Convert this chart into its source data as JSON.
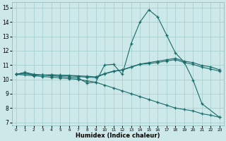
{
  "xlabel": "Humidex (Indice chaleur)",
  "background_color": "#cce8e8",
  "grid_color": "#a8d0d0",
  "line_color": "#1a6b6b",
  "xlim": [
    -0.5,
    23.5
  ],
  "ylim": [
    6.8,
    15.4
  ],
  "yticks": [
    7,
    8,
    9,
    10,
    11,
    12,
    13,
    14,
    15
  ],
  "xticks": [
    0,
    1,
    2,
    3,
    4,
    5,
    6,
    7,
    8,
    9,
    10,
    11,
    12,
    13,
    14,
    15,
    16,
    17,
    18,
    19,
    20,
    21,
    22,
    23
  ],
  "series": [
    {
      "x": [
        0,
        1,
        2,
        3,
        4,
        5,
        6,
        7,
        8,
        9,
        10,
        11,
        12,
        13,
        14,
        15,
        16,
        17,
        18,
        19,
        20,
        21,
        22,
        23
      ],
      "y": [
        10.35,
        10.5,
        10.35,
        10.3,
        10.25,
        10.2,
        10.15,
        10.1,
        9.75,
        9.8,
        11.0,
        11.05,
        10.35,
        12.5,
        14.0,
        14.85,
        14.35,
        13.1,
        11.85,
        11.2,
        9.95,
        8.3,
        null,
        7.35
      ]
    },
    {
      "x": [
        0,
        1,
        2,
        3,
        4,
        5,
        6,
        7,
        8,
        9,
        10,
        11,
        12,
        13,
        14,
        15,
        16,
        17,
        18,
        19,
        20,
        21,
        22,
        23
      ],
      "y": [
        10.35,
        10.4,
        10.3,
        10.3,
        10.3,
        10.28,
        10.25,
        10.2,
        10.15,
        10.12,
        10.38,
        10.55,
        10.65,
        10.85,
        11.05,
        11.1,
        11.18,
        11.28,
        11.38,
        11.18,
        11.05,
        10.85,
        10.72,
        10.58
      ]
    },
    {
      "x": [
        0,
        1,
        2,
        3,
        4,
        5,
        6,
        7,
        8,
        9,
        10,
        11,
        12,
        13,
        14,
        15,
        16,
        17,
        18,
        19,
        20,
        21,
        22,
        23
      ],
      "y": [
        10.35,
        10.42,
        10.33,
        10.3,
        10.32,
        10.3,
        10.28,
        10.25,
        10.22,
        10.18,
        10.4,
        10.58,
        10.67,
        10.87,
        11.07,
        11.17,
        11.27,
        11.37,
        11.47,
        11.27,
        11.17,
        10.97,
        10.87,
        10.67
      ]
    },
    {
      "x": [
        0,
        1,
        2,
        3,
        4,
        5,
        6,
        7,
        8,
        9,
        10,
        11,
        12,
        13,
        14,
        15,
        16,
        17,
        18,
        19,
        20,
        21,
        22,
        23
      ],
      "y": [
        10.35,
        10.3,
        10.25,
        10.2,
        10.15,
        10.1,
        10.05,
        10.0,
        9.9,
        9.8,
        9.6,
        9.4,
        9.2,
        9.0,
        8.8,
        8.6,
        8.4,
        8.2,
        8.0,
        7.9,
        7.8,
        7.6,
        7.5,
        7.35
      ]
    }
  ]
}
